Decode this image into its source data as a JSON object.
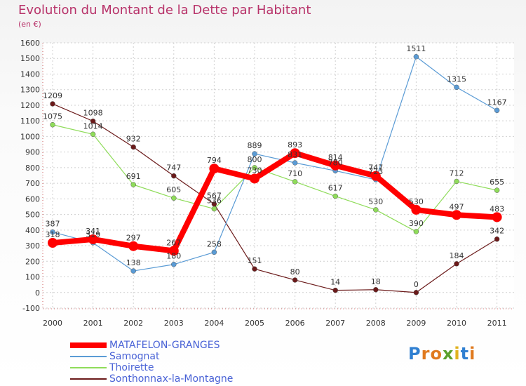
{
  "chart_data": {
    "type": "line",
    "title": "Evolution du Montant de la Dette par Habitant",
    "subtitle": "(en €)",
    "xlabel": "",
    "ylabel": "",
    "categories": [
      "2000",
      "2001",
      "2002",
      "2003",
      "2004",
      "2005",
      "2006",
      "2007",
      "2008",
      "2009",
      "2010",
      "2011"
    ],
    "ylim": [
      -100,
      1600
    ],
    "yticks": [
      -100,
      0,
      100,
      200,
      300,
      400,
      500,
      600,
      700,
      800,
      900,
      1000,
      1100,
      1200,
      1300,
      1400,
      1500,
      1600
    ],
    "grid": true,
    "legend_position": "bottom-left",
    "series": [
      {
        "name": "Sonthonnax-la-Montagne",
        "color": "#6b1a1a",
        "values": [
          1209,
          1098,
          932,
          747,
          567,
          151,
          80,
          14,
          18,
          0,
          184,
          342
        ]
      },
      {
        "name": "Thoirette",
        "color": "#8fdc5a",
        "values": [
          1075,
          1014,
          691,
          605,
          536,
          800,
          710,
          617,
          530,
          390,
          712,
          655
        ]
      },
      {
        "name": "Samognat",
        "color": "#5a9bd5",
        "values": [
          387,
          319,
          138,
          180,
          258,
          889,
          831,
          780,
          723,
          1511,
          1315,
          1167
        ]
      },
      {
        "name": "MATAFELON-GRANGES",
        "color": "#ff0000",
        "values": [
          318,
          341,
          297,
          267,
          794,
          730,
          893,
          814,
          747,
          530,
          497,
          483
        ]
      }
    ],
    "data_labels": {
      "Sonthonnax-la-Montagne": [
        "1209",
        "1098",
        "932",
        "747",
        "567",
        "151",
        "80",
        "14",
        "18",
        "0",
        "184",
        "342"
      ],
      "Thoirette": [
        "1075",
        "1014",
        "691",
        "605",
        "536",
        "800",
        "710",
        "617",
        "530",
        "390",
        "712",
        "655"
      ],
      "Samognat": [
        "387",
        "319",
        "138",
        "180",
        "258",
        "889",
        "831",
        "780",
        "723",
        "1511",
        "1315",
        "1167"
      ],
      "MATAFELON-GRANGES": [
        "318",
        "341",
        "297",
        "267",
        "794",
        "730",
        "893",
        "814",
        "747",
        "530",
        "497",
        "483"
      ]
    }
  },
  "legend": {
    "items": [
      {
        "label": "MATAFELON-GRANGES",
        "color": "#ff0000",
        "weight": "thick"
      },
      {
        "label": "Samognat",
        "color": "#5a9bd5",
        "weight": "thin"
      },
      {
        "label": "Thoirette",
        "color": "#8fdc5a",
        "weight": "thin"
      },
      {
        "label": "Sonthonnax-la-Montagne",
        "color": "#6b1a1a",
        "weight": "thin"
      }
    ]
  },
  "logo": {
    "text": "Proxiti"
  }
}
